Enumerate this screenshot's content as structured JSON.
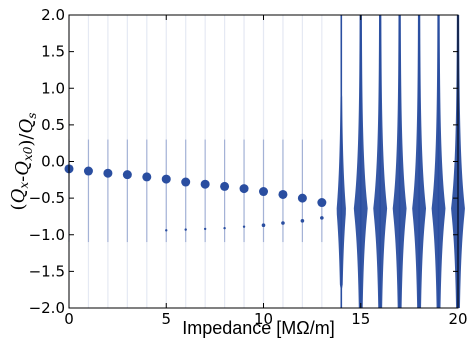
{
  "chart_data": {
    "type": "scatter",
    "title": "",
    "xlabel": "Impedance [MΩ/m]",
    "ylabel": "(Q_x-Q_x0)/Q_s",
    "xlim": [
      0,
      20
    ],
    "ylim": [
      -2.0,
      2.0
    ],
    "x_ticks": [
      "0",
      "5",
      "10",
      "15",
      "20"
    ],
    "y_ticks": [
      "−2.0",
      "−1.5",
      "−1.0",
      "−0.5",
      "0.0",
      "0.5",
      "1.0",
      "1.5",
      "2.0"
    ],
    "grid": false,
    "color": "#2a4ea0",
    "mode0_points": {
      "x": [
        0,
        1,
        2,
        3,
        4,
        5,
        6,
        7,
        8,
        9,
        10,
        11,
        12,
        13
      ],
      "y": [
        -0.1,
        -0.13,
        -0.16,
        -0.18,
        -0.21,
        -0.24,
        -0.28,
        -0.31,
        -0.34,
        -0.37,
        -0.41,
        -0.45,
        -0.5,
        -0.56
      ]
    },
    "mode_minus1_points": {
      "x": [
        5,
        6,
        7,
        8,
        9,
        10,
        11,
        12,
        13
      ],
      "y": [
        -0.94,
        -0.93,
        -0.92,
        -0.91,
        -0.89,
        -0.87,
        -0.84,
        -0.81,
        -0.77
      ]
    },
    "unstable_spreads": {
      "x": [
        14,
        15,
        16,
        17,
        18,
        19,
        20
      ],
      "center": [
        -0.67,
        -0.65,
        -0.65,
        -0.65,
        -0.65,
        -0.65,
        -0.65
      ]
    }
  }
}
